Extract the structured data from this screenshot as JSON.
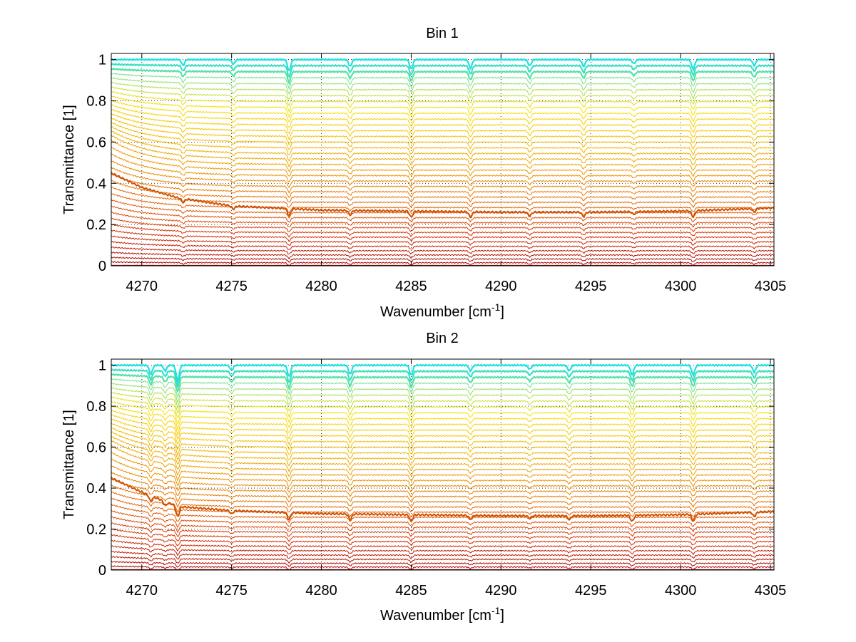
{
  "chart_data": [
    {
      "type": "line",
      "title": "Bin 1",
      "xlabel": "Wavenumber [cm",
      "xlabel_sup": "-1",
      "xlabel_end": "]",
      "ylabel": "Transmittance [1]",
      "xlim": [
        4268.3,
        4305.2
      ],
      "ylim": [
        0,
        1.03
      ],
      "xticks": [
        4270,
        4275,
        4280,
        4285,
        4290,
        4295,
        4300,
        4305
      ],
      "yticks": [
        0,
        0.2,
        0.4,
        0.6,
        0.8,
        1
      ],
      "ytick_labels": [
        "0",
        "0.2",
        "0.4",
        "0.6",
        "0.8",
        "1"
      ],
      "grid": "dotted",
      "series_count": 40,
      "color_scale": [
        "#a00000",
        "#d83000",
        "#e87800",
        "#f0b000",
        "#f8e000",
        "#20e0e0"
      ],
      "absorption_lines": [
        {
          "x": 4272.3,
          "relative_depth": 0.5
        },
        {
          "x": 4275.1,
          "relative_depth": 0.4
        },
        {
          "x": 4278.2,
          "relative_depth": 1.0
        },
        {
          "x": 4281.6,
          "relative_depth": 0.6
        },
        {
          "x": 4285.0,
          "relative_depth": 0.85
        },
        {
          "x": 4288.3,
          "relative_depth": 0.75
        },
        {
          "x": 4291.6,
          "relative_depth": 0.55
        },
        {
          "x": 4294.6,
          "relative_depth": 0.6
        },
        {
          "x": 4297.4,
          "relative_depth": 0.35
        },
        {
          "x": 4300.7,
          "relative_depth": 0.85
        },
        {
          "x": 4304.1,
          "relative_depth": 0.5
        }
      ],
      "highlighted_series": {
        "color": "#d05000",
        "x": [
          4268.3,
          4270,
          4272,
          4275,
          4280,
          4285,
          4290,
          4295,
          4300,
          4305
        ],
        "y": [
          0.45,
          0.38,
          0.33,
          0.29,
          0.27,
          0.265,
          0.26,
          0.26,
          0.265,
          0.28
        ]
      }
    },
    {
      "type": "line",
      "title": "Bin 2",
      "xlabel": "Wavenumber [cm",
      "xlabel_sup": "-1",
      "xlabel_end": "]",
      "ylabel": "Transmittance [1]",
      "xlim": [
        4268.3,
        4305.2
      ],
      "ylim": [
        0,
        1.03
      ],
      "xticks": [
        4270,
        4275,
        4280,
        4285,
        4290,
        4295,
        4300,
        4305
      ],
      "yticks": [
        0,
        0.2,
        0.4,
        0.6,
        0.8,
        1
      ],
      "ytick_labels": [
        "0",
        "0.2",
        "0.4",
        "0.6",
        "0.8",
        "1"
      ],
      "grid": "dotted",
      "series_count": 40,
      "color_scale": [
        "#a00000",
        "#d83000",
        "#e87800",
        "#f0b000",
        "#f8e000",
        "#20e0e0"
      ],
      "absorption_lines": [
        {
          "x": 4270.5,
          "relative_depth": 0.8
        },
        {
          "x": 4271.3,
          "relative_depth": 0.5
        },
        {
          "x": 4272.0,
          "relative_depth": 1.4
        },
        {
          "x": 4275.0,
          "relative_depth": 0.45
        },
        {
          "x": 4278.2,
          "relative_depth": 1.0
        },
        {
          "x": 4281.6,
          "relative_depth": 0.8
        },
        {
          "x": 4285.0,
          "relative_depth": 0.9
        },
        {
          "x": 4288.3,
          "relative_depth": 0.5
        },
        {
          "x": 4291.6,
          "relative_depth": 0.35
        },
        {
          "x": 4293.8,
          "relative_depth": 0.5
        },
        {
          "x": 4297.3,
          "relative_depth": 0.85
        },
        {
          "x": 4300.7,
          "relative_depth": 0.85
        },
        {
          "x": 4304.1,
          "relative_depth": 0.6
        }
      ],
      "highlighted_series": {
        "color": "#d05000",
        "x": [
          4268.3,
          4270,
          4272,
          4275,
          4280,
          4285,
          4290,
          4295,
          4300,
          4305
        ],
        "y": [
          0.45,
          0.38,
          0.31,
          0.29,
          0.275,
          0.27,
          0.265,
          0.265,
          0.27,
          0.285
        ]
      }
    }
  ]
}
